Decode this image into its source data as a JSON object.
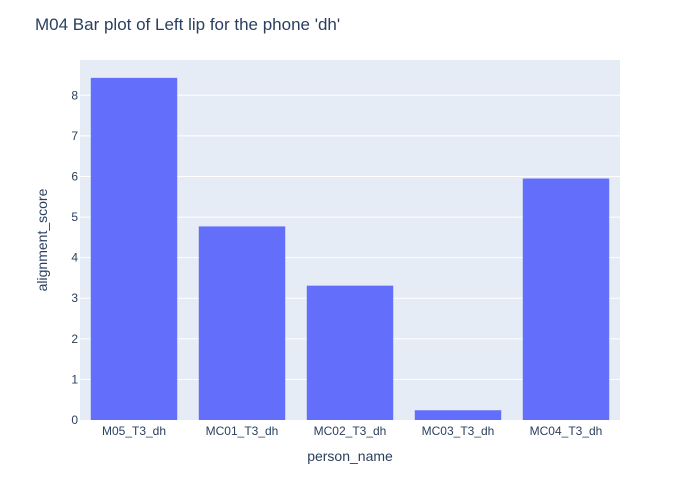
{
  "chart_data": {
    "type": "bar",
    "title": "M04 Bar plot of Left lip for the phone 'dh'",
    "xlabel": "person_name",
    "ylabel": "alignment_score",
    "categories": [
      "M05_T3_dh",
      "MC01_T3_dh",
      "MC02_T3_dh",
      "MC03_T3_dh",
      "MC04_T3_dh"
    ],
    "values": [
      8.43,
      4.77,
      3.31,
      0.24,
      5.95
    ],
    "ylim": [
      0,
      8.87
    ],
    "yticks": [
      0,
      1,
      2,
      3,
      4,
      5,
      6,
      7,
      8
    ],
    "grid": true,
    "legend": "none",
    "bar_color": "#636efa",
    "plot_bg": "#e5ecf6"
  }
}
